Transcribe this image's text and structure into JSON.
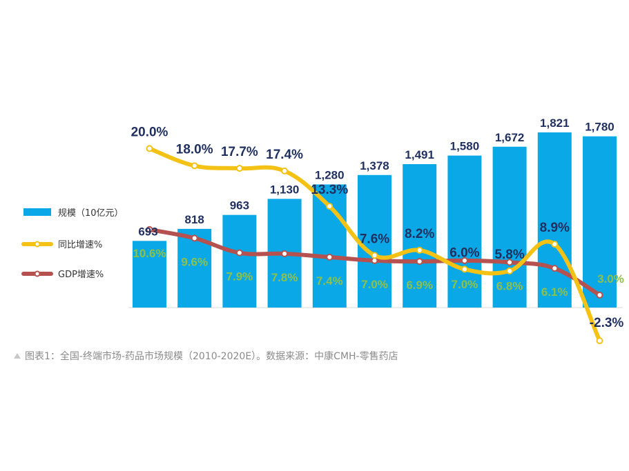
{
  "colors": {
    "bar": "#0aa8e6",
    "yoy_line": "#f3c214",
    "gdp_line": "#b5524f",
    "bar_label": "#1f2f5f",
    "gdp_label": "#8fc14a"
  },
  "legend": [
    {
      "label": "规模（10亿元）",
      "marker": "bar"
    },
    {
      "label": "同比增速%",
      "marker": "line-yellow"
    },
    {
      "label": "GDP增速%",
      "marker": "line-red"
    }
  ],
  "chart_data": {
    "type": "bar",
    "categories": [
      "",
      "",
      "",
      "",
      "",
      "",
      "",
      "",
      "",
      "",
      ""
    ],
    "series": [
      {
        "name": "规模（10亿元）",
        "type": "bar",
        "values": [
          693,
          818,
          963,
          1130,
          1280,
          1378,
          1491,
          1580,
          1672,
          1821,
          1780
        ],
        "labels": [
          "693",
          "818",
          "963",
          "1,130",
          "1,280",
          "1,378",
          "1,491",
          "1,580",
          "1,672",
          "1,821",
          "1,780"
        ]
      },
      {
        "name": "同比增速%",
        "type": "line",
        "values": [
          20.0,
          18.0,
          17.7,
          17.4,
          13.3,
          7.6,
          8.2,
          6.0,
          5.8,
          8.9,
          -2.3
        ],
        "labels": [
          "20.0%",
          "18.0%",
          "17.7%",
          "17.4%",
          "13.3%",
          "7.6%",
          "8.2%",
          "6.0%",
          "5.8%",
          "8.9%",
          "-2.3%"
        ]
      },
      {
        "name": "GDP增速%",
        "type": "line",
        "values": [
          10.6,
          9.6,
          7.9,
          7.8,
          7.4,
          7.0,
          6.9,
          7.0,
          6.8,
          6.1,
          3.0
        ],
        "labels": [
          "10.6%",
          "9.6%",
          "7.9%",
          "7.8%",
          "7.4%",
          "7.0%",
          "6.9%",
          "7.0%",
          "6.8%",
          "6.1%",
          "3.0%"
        ]
      }
    ],
    "ylim_bar": [
      0,
      1900
    ],
    "ylim_line": [
      -5,
      25
    ],
    "grid": false,
    "legend_position": "left"
  },
  "caption": {
    "text": "图表1：全国-终端市场-药品市场规模（2010-2020E）。数据来源：中康CMH-零售药店",
    "icon": "triangle-up-icon"
  }
}
